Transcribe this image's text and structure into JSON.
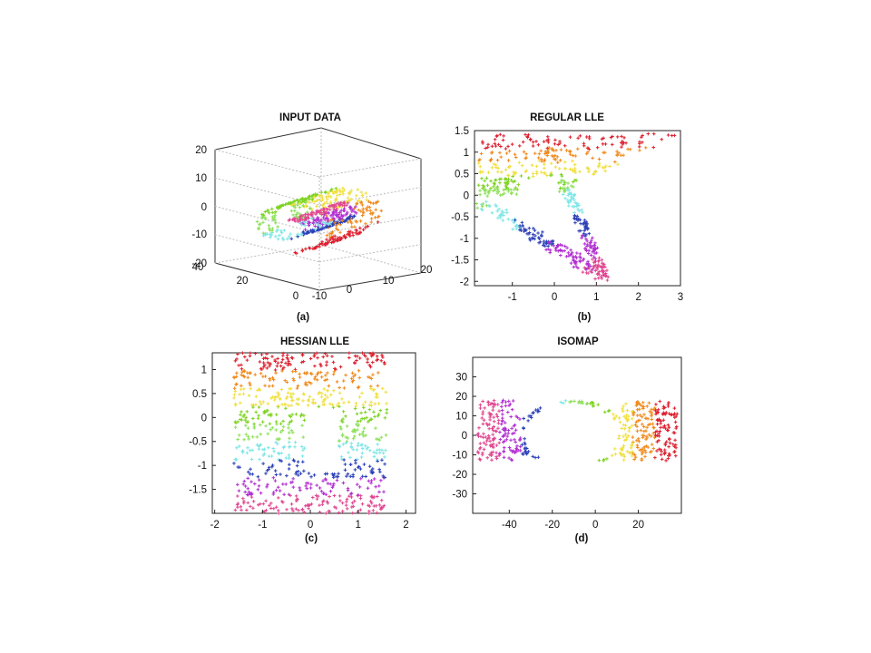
{
  "figure": {
    "panels": [
      {
        "title": "INPUT DATA",
        "caption": "(a)"
      },
      {
        "title": "REGULAR LLE",
        "caption": "(b)"
      },
      {
        "title": "HESSIAN LLE",
        "caption": "(c)"
      },
      {
        "title": "ISOMAP",
        "caption": "(d)"
      }
    ]
  },
  "chart_data": [
    {
      "type": "scatter",
      "title": "INPUT DATA",
      "caption": "(a)",
      "projection": "3d",
      "x_ticks": [
        "-10",
        "0",
        "10",
        "20"
      ],
      "y_ticks": [
        "0",
        "20",
        "40"
      ],
      "z_ticks": [
        "-20",
        "-10",
        "0",
        "10",
        "20"
      ],
      "xlim": [
        -10,
        20
      ],
      "ylim": [
        0,
        40
      ],
      "zlim": [
        -20,
        20
      ],
      "grid": true,
      "color_scale": [
        "#dd1f2e",
        "#f08a1c",
        "#f0e040",
        "#7ed321",
        "#8ee05a",
        "#7fe6e6",
        "#2b3fb8",
        "#b12fd1",
        "#e0468f"
      ],
      "description_shape": "swiss roll with hole"
    },
    {
      "type": "scatter",
      "title": "REGULAR LLE",
      "caption": "(b)",
      "xlim": [
        -1.9,
        3.0
      ],
      "ylim": [
        -2.1,
        1.5
      ],
      "x_ticks": [
        "-1",
        "0",
        "1",
        "2",
        "3"
      ],
      "y_ticks": [
        "1.5",
        "1",
        "0.5",
        "0",
        "-0.5",
        "-1",
        "-1.5",
        "-2"
      ],
      "grid": false,
      "color_scale": [
        "#dd1f2e",
        "#f08a1c",
        "#f0e040",
        "#7ed321",
        "#8ee05a",
        "#7fe6e6",
        "#2b3fb8",
        "#b12fd1",
        "#e0468f"
      ]
    },
    {
      "type": "scatter",
      "title": "HESSIAN LLE",
      "caption": "(c)",
      "xlim": [
        -2.05,
        2.2
      ],
      "ylim": [
        -2.0,
        1.35
      ],
      "x_ticks": [
        "-2",
        "-1",
        "0",
        "1",
        "2"
      ],
      "y_ticks": [
        "1",
        "0.5",
        "0",
        "-0.5",
        "-1",
        "-1.5"
      ],
      "grid": false,
      "color_scale": [
        "#dd1f2e",
        "#f08a1c",
        "#f0e040",
        "#7ed321",
        "#8ee05a",
        "#7fe6e6",
        "#2b3fb8",
        "#b12fd1",
        "#e0468f"
      ]
    },
    {
      "type": "scatter",
      "title": "ISOMAP",
      "caption": "(d)",
      "xlim": [
        -57,
        40
      ],
      "ylim": [
        -40,
        40
      ],
      "x_ticks": [
        "-40",
        "-20",
        "0",
        "20"
      ],
      "y_ticks": [
        "30",
        "20",
        "10",
        "0",
        "-10",
        "-20",
        "-30"
      ],
      "grid": false,
      "color_scale": [
        "#dd1f2e",
        "#f08a1c",
        "#f0e040",
        "#7ed321",
        "#8ee05a",
        "#7fe6e6",
        "#2b3fb8",
        "#b12fd1",
        "#e0468f"
      ]
    }
  ]
}
